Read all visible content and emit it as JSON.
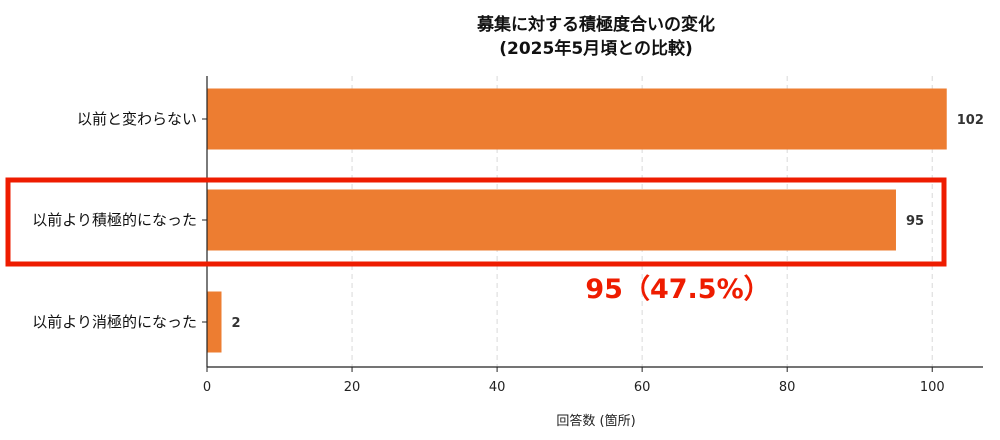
{
  "chart_data": {
    "type": "bar",
    "orientation": "horizontal",
    "title": "募集に対する積極度合いの変化",
    "subtitle": "(2025年5月頃との比較)",
    "categories": [
      "以前と変わらない",
      "以前より積極的になった",
      "以前より消極的になった"
    ],
    "values": [
      102,
      95,
      2
    ],
    "value_labels": [
      "102",
      "95",
      "2"
    ],
    "xlabel": "回答数 (箇所)",
    "xlim": [
      0,
      107
    ],
    "xticks": [
      0,
      20,
      40,
      60,
      80,
      100
    ],
    "grid": "vertical-dashed",
    "highlight_category": "以前より積極的になった",
    "annotation": "95（47.5%）",
    "colors": {
      "bar": "#ED7D31",
      "highlight": "#EE1C00",
      "grid": "#d9d9d9",
      "axis": "#222222"
    }
  }
}
